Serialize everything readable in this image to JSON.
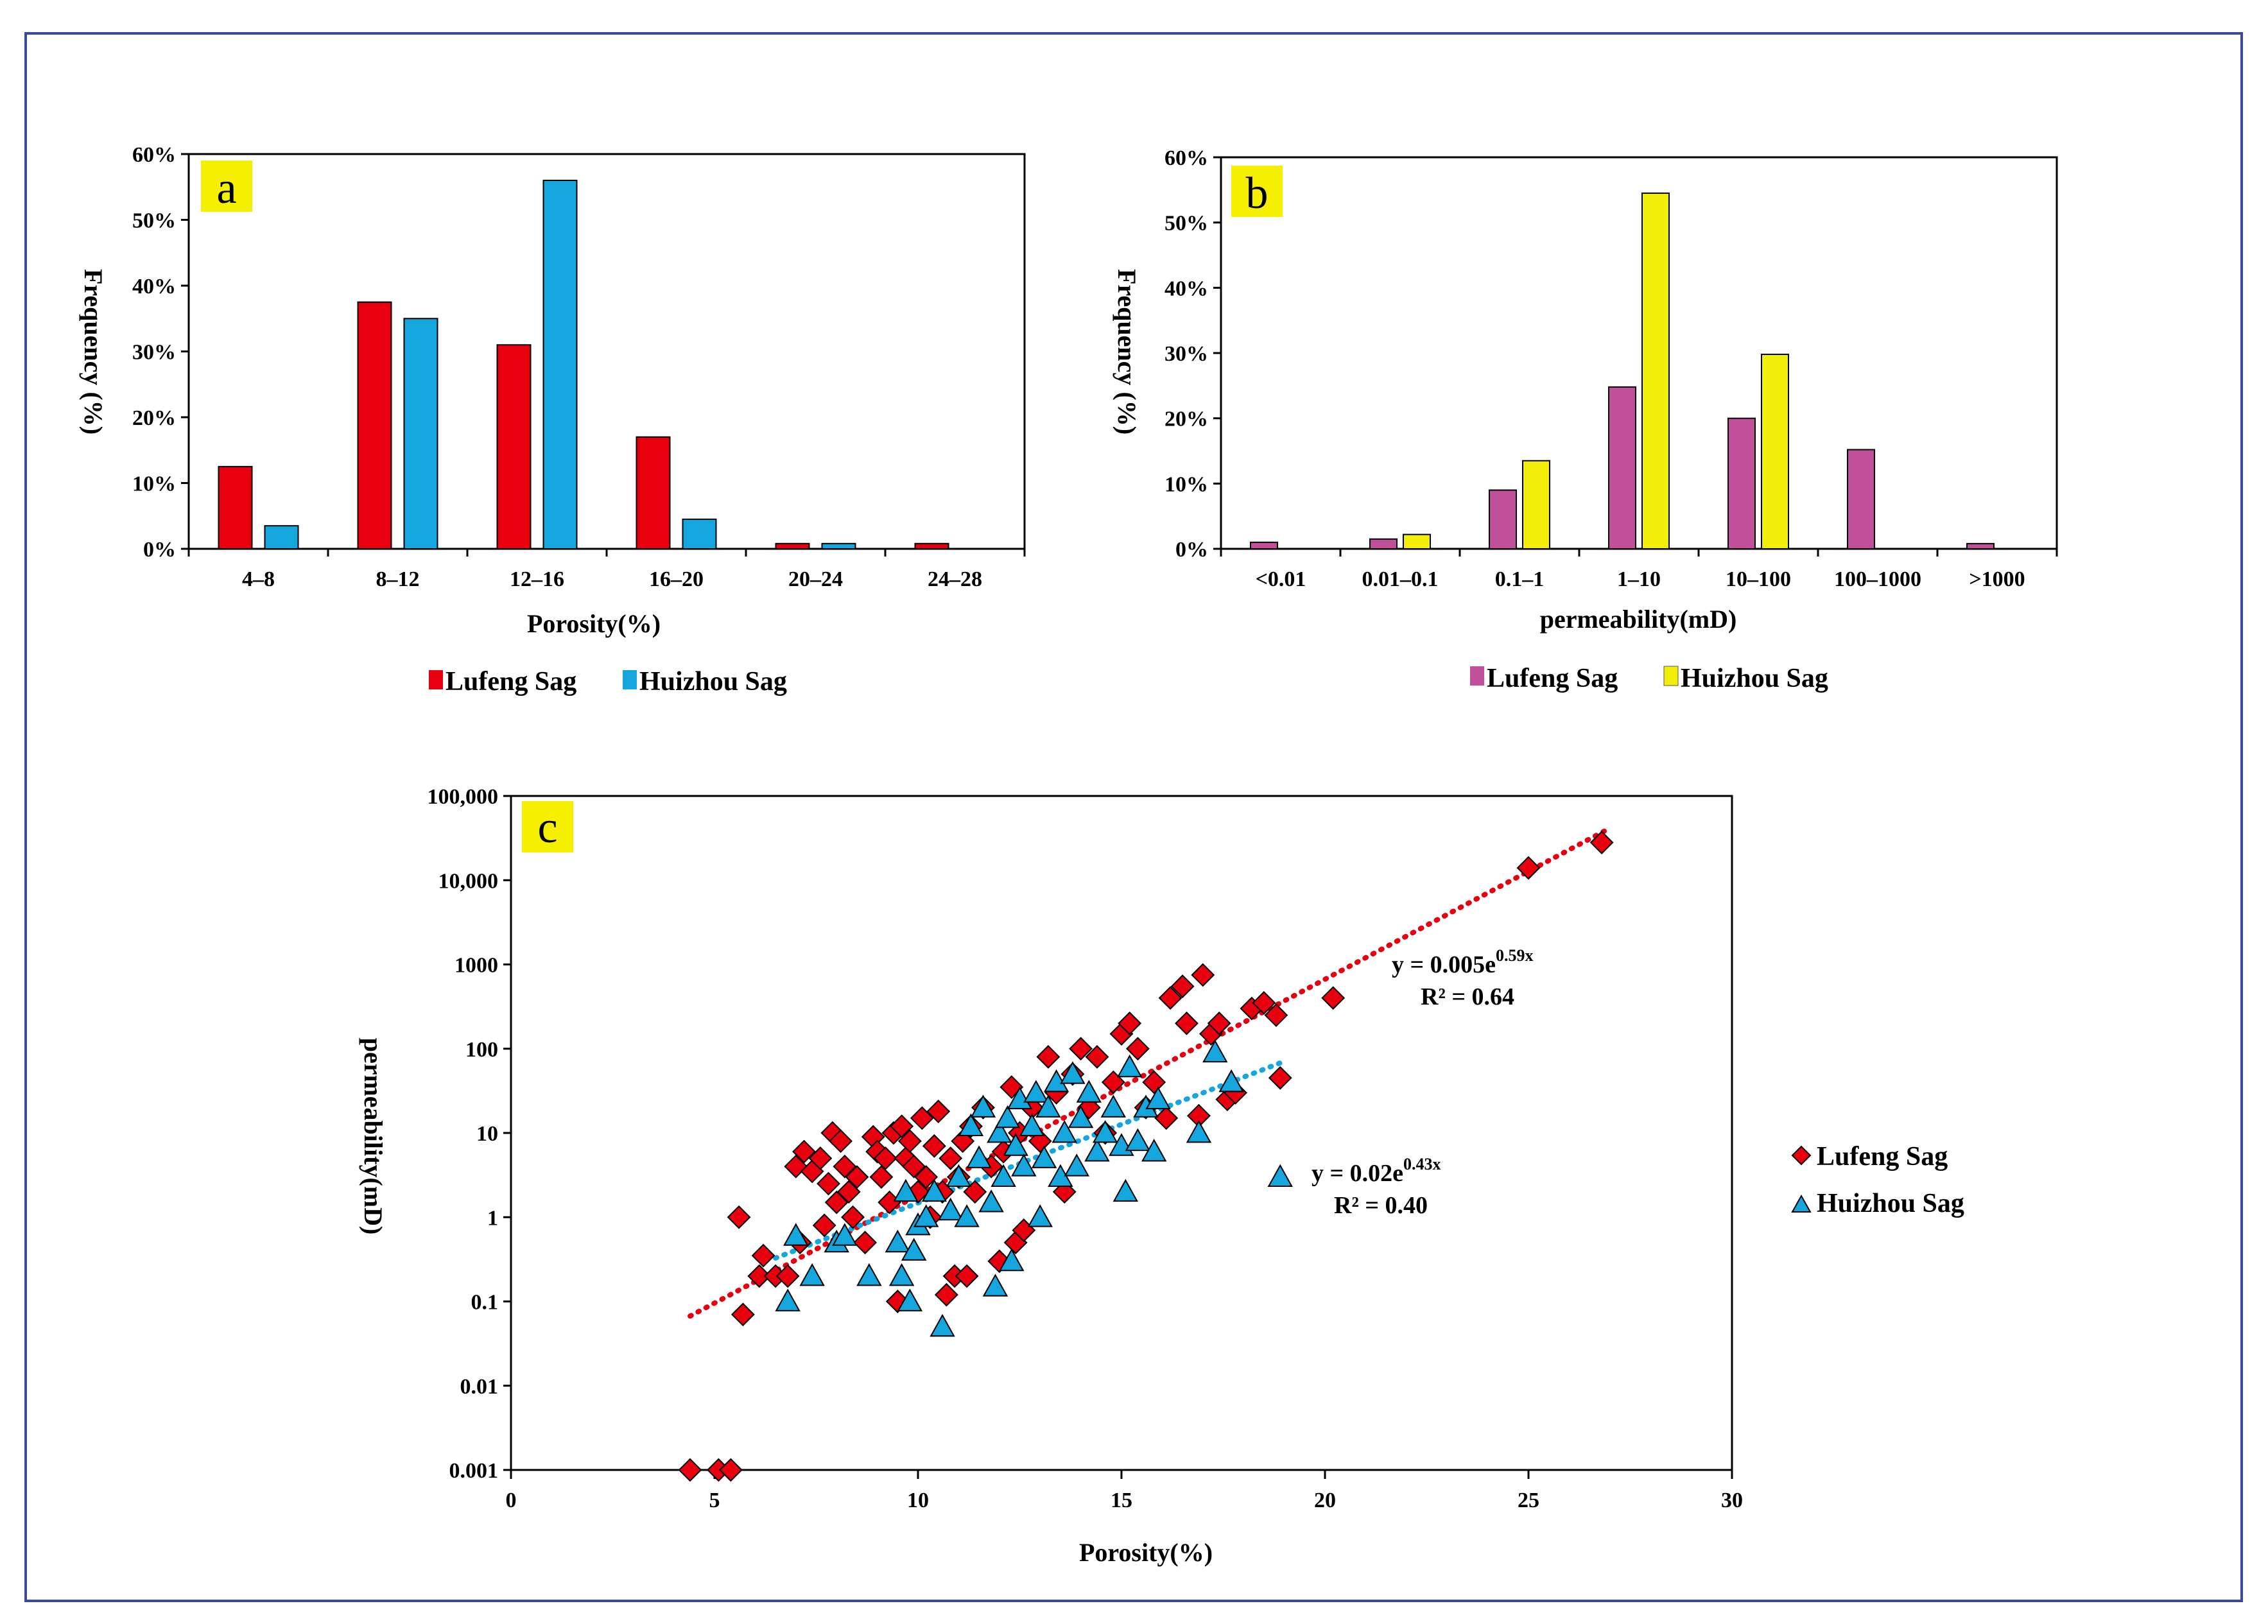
{
  "chart_data": [
    {
      "panel": "a",
      "type": "bar",
      "xlabel": "Porosity(%)",
      "ylabel": "Frequency (%)",
      "categories": [
        "4–8",
        "8–12",
        "12–16",
        "16–20",
        "20–24",
        "24–28"
      ],
      "ylim": [
        0,
        60
      ],
      "yticks": [
        "0%",
        "10%",
        "20%",
        "30%",
        "40%",
        "50%",
        "60%"
      ],
      "legend_position": "bottom",
      "series": [
        {
          "name": "Lufeng Sag",
          "color": "#e8000f",
          "values": [
            12.5,
            37.5,
            31,
            17,
            0.8,
            0.8
          ]
        },
        {
          "name": "Huizhou Sag",
          "color": "#16a6de",
          "values": [
            3.5,
            35,
            56,
            4.5,
            0.8,
            0
          ]
        }
      ]
    },
    {
      "panel": "b",
      "type": "bar",
      "xlabel": "permeability(mD)",
      "ylabel": "Frequency (%)",
      "categories": [
        "<0.01",
        "0.01–0.1",
        "0.1–1",
        "1–10",
        "10–100",
        "100–1000",
        ">1000"
      ],
      "ylim": [
        0,
        60
      ],
      "yticks": [
        "0%",
        "10%",
        "20%",
        "30%",
        "40%",
        "50%",
        "60%"
      ],
      "legend_position": "bottom",
      "series": [
        {
          "name": "Lufeng Sag",
          "color": "#c0509a",
          "values": [
            1,
            1.5,
            9,
            24.8,
            20,
            15.2,
            0.8
          ]
        },
        {
          "name": "Huizhou Sag",
          "color": "#f2ee0a",
          "values": [
            0,
            2.2,
            13.5,
            54.5,
            29.8,
            0,
            0
          ]
        }
      ]
    },
    {
      "panel": "c",
      "type": "scatter",
      "xlabel": "Porosity(%)",
      "ylabel": "permeability(mD)",
      "xlim": [
        0,
        30
      ],
      "xticks": [
        "0",
        "5",
        "10",
        "15",
        "20",
        "25",
        "30"
      ],
      "ylim": [
        0.001,
        100000
      ],
      "yscale": "log",
      "yticks": [
        "0.001",
        "0.01",
        "0.1",
        "1",
        "10",
        "100",
        "1000",
        "10,000",
        "100,000"
      ],
      "legend_position": "right",
      "series": [
        {
          "name": "Lufeng Sag",
          "marker": "diamond",
          "color": "#e8000f",
          "trendline": {
            "a": 0.005,
            "b": 0.59,
            "x_range": [
              4.4,
              27
            ],
            "color": "#e8000f"
          },
          "equation": {
            "prefix": "y = 0.005e",
            "exponent": "0.59x",
            "r2": "R² = 0.64"
          },
          "points": [
            [
              4.4,
              0.001
            ],
            [
              5.1,
              0.001
            ],
            [
              5.4,
              0.001
            ],
            [
              5.6,
              1
            ],
            [
              5.7,
              0.07
            ],
            [
              6.1,
              0.2
            ],
            [
              6.2,
              0.35
            ],
            [
              6.5,
              0.2
            ],
            [
              6.8,
              0.2
            ],
            [
              7.0,
              4
            ],
            [
              7.1,
              0.5
            ],
            [
              7.2,
              6
            ],
            [
              7.4,
              3.5
            ],
            [
              7.6,
              5
            ],
            [
              7.7,
              0.8
            ],
            [
              7.8,
              2.5
            ],
            [
              7.9,
              10
            ],
            [
              8.0,
              1.5
            ],
            [
              8.1,
              8
            ],
            [
              8.2,
              4
            ],
            [
              8.3,
              2
            ],
            [
              8.4,
              1
            ],
            [
              8.5,
              3
            ],
            [
              8.7,
              0.5
            ],
            [
              8.9,
              9
            ],
            [
              9.0,
              6
            ],
            [
              9.1,
              3
            ],
            [
              9.2,
              5
            ],
            [
              9.3,
              1.5
            ],
            [
              9.4,
              10
            ],
            [
              9.5,
              0.1
            ],
            [
              9.6,
              12
            ],
            [
              9.7,
              5
            ],
            [
              9.8,
              8
            ],
            [
              9.9,
              4
            ],
            [
              10.0,
              2
            ],
            [
              10.1,
              15
            ],
            [
              10.2,
              3
            ],
            [
              10.3,
              1
            ],
            [
              10.4,
              7
            ],
            [
              10.5,
              18
            ],
            [
              10.6,
              2
            ],
            [
              10.7,
              0.12
            ],
            [
              10.8,
              5
            ],
            [
              10.9,
              0.2
            ],
            [
              11.0,
              3
            ],
            [
              11.1,
              8
            ],
            [
              11.2,
              0.2
            ],
            [
              11.3,
              12
            ],
            [
              11.4,
              2
            ],
            [
              11.6,
              20
            ],
            [
              11.8,
              4
            ],
            [
              12.0,
              0.3
            ],
            [
              12.1,
              6
            ],
            [
              12.3,
              35
            ],
            [
              12.4,
              0.5
            ],
            [
              12.5,
              10
            ],
            [
              12.6,
              0.7
            ],
            [
              12.8,
              20
            ],
            [
              13.0,
              8
            ],
            [
              13.2,
              80
            ],
            [
              13.4,
              30
            ],
            [
              13.6,
              2
            ],
            [
              13.8,
              50
            ],
            [
              14.0,
              100
            ],
            [
              14.2,
              20
            ],
            [
              14.4,
              80
            ],
            [
              14.6,
              10
            ],
            [
              14.8,
              40
            ],
            [
              15.0,
              150
            ],
            [
              15.2,
              200
            ],
            [
              15.4,
              100
            ],
            [
              15.6,
              20
            ],
            [
              15.8,
              40
            ],
            [
              16.1,
              15
            ],
            [
              16.2,
              400
            ],
            [
              16.5,
              550
            ],
            [
              16.6,
              200
            ],
            [
              16.9,
              16
            ],
            [
              17.0,
              750
            ],
            [
              17.2,
              150
            ],
            [
              17.4,
              200
            ],
            [
              17.6,
              25
            ],
            [
              17.8,
              30
            ],
            [
              18.2,
              300
            ],
            [
              18.5,
              350
            ],
            [
              18.8,
              250
            ],
            [
              18.9,
              45
            ],
            [
              20.2,
              400
            ],
            [
              25.0,
              14000
            ],
            [
              26.8,
              28000
            ]
          ]
        },
        {
          "name": "Huizhou Sag",
          "marker": "triangle",
          "color": "#16a6de",
          "trendline": {
            "a": 0.02,
            "b": 0.43,
            "x_range": [
              6.5,
              19
            ],
            "color": "#16a6de"
          },
          "equation": {
            "prefix": "y = 0.02e",
            "exponent": "0.43x",
            "r2": "R² = 0.40"
          },
          "points": [
            [
              6.8,
              0.1
            ],
            [
              7.0,
              0.6
            ],
            [
              7.4,
              0.2
            ],
            [
              8.0,
              0.5
            ],
            [
              8.2,
              0.6
            ],
            [
              8.8,
              0.2
            ],
            [
              9.5,
              0.5
            ],
            [
              9.6,
              0.2
            ],
            [
              9.7,
              2
            ],
            [
              9.8,
              0.1
            ],
            [
              9.9,
              0.4
            ],
            [
              10.0,
              0.8
            ],
            [
              10.2,
              1
            ],
            [
              10.4,
              2
            ],
            [
              10.6,
              0.05
            ],
            [
              10.8,
              1.2
            ],
            [
              11.0,
              3
            ],
            [
              11.2,
              1
            ],
            [
              11.3,
              12
            ],
            [
              11.5,
              5
            ],
            [
              11.6,
              20
            ],
            [
              11.8,
              1.5
            ],
            [
              11.9,
              0.15
            ],
            [
              12.0,
              10
            ],
            [
              12.1,
              3
            ],
            [
              12.2,
              15
            ],
            [
              12.3,
              0.3
            ],
            [
              12.4,
              7
            ],
            [
              12.5,
              25
            ],
            [
              12.6,
              4
            ],
            [
              12.8,
              12
            ],
            [
              12.9,
              30
            ],
            [
              13.0,
              1
            ],
            [
              13.1,
              5
            ],
            [
              13.2,
              20
            ],
            [
              13.4,
              40
            ],
            [
              13.5,
              3
            ],
            [
              13.6,
              10
            ],
            [
              13.8,
              50
            ],
            [
              13.9,
              4
            ],
            [
              14.0,
              15
            ],
            [
              14.2,
              30
            ],
            [
              14.4,
              6
            ],
            [
              14.6,
              10
            ],
            [
              14.8,
              20
            ],
            [
              15.0,
              7
            ],
            [
              15.1,
              2
            ],
            [
              15.2,
              60
            ],
            [
              15.4,
              8
            ],
            [
              15.6,
              20
            ],
            [
              15.8,
              6
            ],
            [
              15.9,
              25
            ],
            [
              16.9,
              10
            ],
            [
              17.3,
              90
            ],
            [
              17.7,
              40
            ],
            [
              18.9,
              3
            ]
          ]
        }
      ]
    }
  ]
}
